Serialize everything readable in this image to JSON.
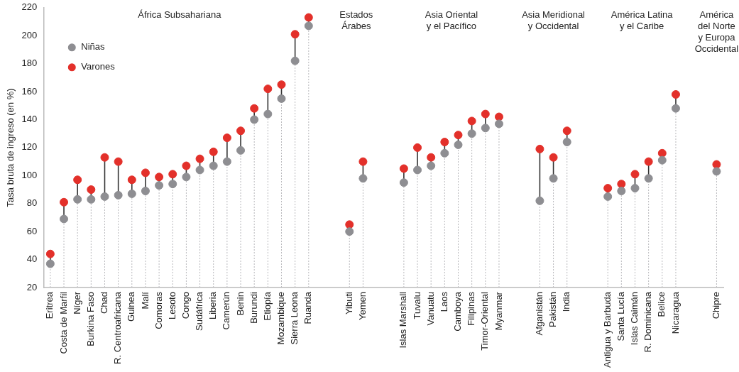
{
  "chart_data": {
    "type": "lollipop",
    "ylabel": "Tasa bruta de ingreso (en %)",
    "categories": [
      "Eritrea",
      "Costa de Marfil",
      "Níger",
      "Burkina Faso",
      "Chad",
      "R. Centroafricana",
      "Guinea",
      "Malí",
      "Comoras",
      "Lesoto",
      "Congo",
      "Sudáfrica",
      "Liberia",
      "Camerún",
      "Benin",
      "Burundi",
      "Etiopía",
      "Mozambique",
      "Sierra Leona",
      "Ruanda",
      null,
      null,
      "Yibuti",
      "Yemen",
      null,
      null,
      "Islas Marshall",
      "Tuvalu",
      "Vanuatu",
      "Laos",
      "Camboya",
      "Filipinas",
      "Timor-Oriental",
      "Myanmar",
      null,
      null,
      "Afganistán",
      "Pakistán",
      "India",
      null,
      null,
      "Antigua y Barbuda",
      "Santa Lucía",
      "Islas Caimán",
      "R. Dominicana",
      "Belice",
      "Nicaragua",
      null,
      null,
      "Chipre"
    ],
    "series": [
      {
        "name": "Niñas",
        "color": "#8e8e92",
        "values": [
          37,
          69,
          83,
          83,
          85,
          86,
          87,
          89,
          93,
          94,
          99,
          104,
          107,
          110,
          118,
          140,
          144,
          155,
          182,
          207,
          null,
          null,
          60,
          98,
          null,
          null,
          95,
          104,
          107,
          116,
          122,
          130,
          134,
          137,
          null,
          null,
          82,
          98,
          124,
          null,
          null,
          85,
          89,
          91,
          98,
          111,
          148,
          null,
          null,
          103
        ]
      },
      {
        "name": "Varones",
        "color": "#e3302a",
        "values": [
          44,
          81,
          97,
          90,
          113,
          110,
          97,
          102,
          99,
          101,
          107,
          112,
          117,
          127,
          132,
          148,
          162,
          165,
          201,
          213,
          null,
          null,
          65,
          110,
          null,
          null,
          105,
          120,
          113,
          124,
          129,
          139,
          144,
          142,
          null,
          null,
          119,
          113,
          132,
          null,
          null,
          91,
          94,
          101,
          110,
          116,
          158,
          null,
          null,
          108
        ]
      }
    ],
    "ylim": [
      20,
      220
    ],
    "yticks": [
      20,
      40,
      60,
      80,
      100,
      120,
      140,
      160,
      180,
      200,
      220
    ],
    "legend": "top left",
    "marker": "circle",
    "annotations": [
      "África Subsahariana",
      "Estados\nÁrabes",
      "Asia Oriental\ny el Pacífico",
      "Asia Meridional\ny Occidental",
      "América Latina\ny el Caribe",
      "América\ndel Norte\ny Europa\nOccidental"
    ]
  }
}
